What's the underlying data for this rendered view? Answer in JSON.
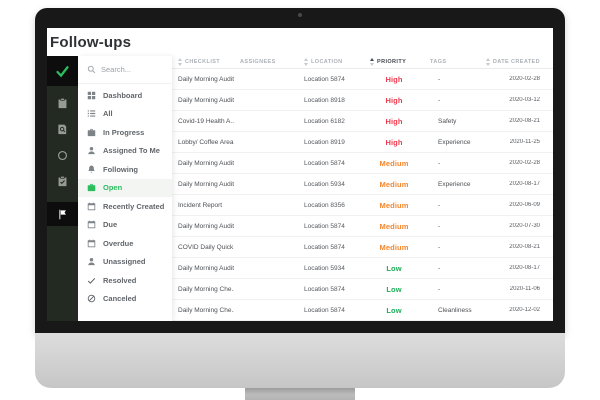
{
  "app": {
    "title": "Follow-ups"
  },
  "colors": {
    "accent_green": "#2bbd5e",
    "priority_high": "#ee3b4d",
    "priority_medium": "#f5872f",
    "priority_low": "#1fad59",
    "rail_background": "#232a22"
  },
  "rail": {
    "items": [
      {
        "icon": "check-logo-icon",
        "tile": true
      },
      {
        "icon": "clipboard-icon"
      },
      {
        "icon": "document-search-icon"
      },
      {
        "icon": "sync-icon"
      },
      {
        "icon": "clipboard-check-icon"
      },
      {
        "icon": "flag-icon",
        "active": true
      }
    ]
  },
  "sidebar": {
    "search_placeholder": "Search...",
    "items": [
      {
        "label": "Dashboard",
        "icon": "grid"
      },
      {
        "label": "All",
        "icon": "list"
      },
      {
        "label": "In Progress",
        "icon": "briefcase"
      },
      {
        "label": "Assigned To Me",
        "icon": "person"
      },
      {
        "label": "Following",
        "icon": "bell"
      },
      {
        "label": "Open",
        "icon": "briefcase",
        "active": true
      },
      {
        "label": "Recently Created",
        "icon": "calendar"
      },
      {
        "label": "Due",
        "icon": "calendar"
      },
      {
        "label": "Overdue",
        "icon": "calendar"
      },
      {
        "label": "Unassigned",
        "icon": "person"
      },
      {
        "label": "Resolved",
        "icon": "check"
      },
      {
        "label": "Canceled",
        "icon": "cancel"
      }
    ]
  },
  "table": {
    "columns": [
      {
        "label": "CHECKLIST",
        "sortable": true
      },
      {
        "label": "ASSIGNEES",
        "sortable": false
      },
      {
        "label": "LOCATION",
        "sortable": true
      },
      {
        "label": "PRIORITY",
        "sortable": true,
        "sorted": "asc"
      },
      {
        "label": "TAGS",
        "sortable": false
      },
      {
        "label": "DATE CREATED",
        "sortable": true,
        "align": "right"
      }
    ],
    "rows": [
      {
        "checklist": "Daily Morning Audit",
        "assignees": "",
        "location": "Location 5874",
        "priority": "High",
        "tags": "-",
        "date_created": "2020-02-28"
      },
      {
        "checklist": "Daily Morning Audit",
        "assignees": "",
        "location": "Location 8918",
        "priority": "High",
        "tags": "-",
        "date_created": "2020-03-12"
      },
      {
        "checklist": "Covid-19 Health A...",
        "assignees": "",
        "location": "Location 6182",
        "priority": "High",
        "tags": "Safety",
        "date_created": "2020-08-21"
      },
      {
        "checklist": "Lobby/ Coffee Area",
        "assignees": "",
        "location": "Location 8919",
        "priority": "High",
        "tags": "Experience",
        "date_created": "2020-11-25"
      },
      {
        "checklist": "Daily Morning Audit",
        "assignees": "",
        "location": "Location 5874",
        "priority": "Medium",
        "tags": "-",
        "date_created": "2020-02-28"
      },
      {
        "checklist": "Daily Morning Audit",
        "assignees": "",
        "location": "Location 5934",
        "priority": "Medium",
        "tags": "Experience",
        "date_created": "2020-08-17"
      },
      {
        "checklist": "Incident Report",
        "assignees": "",
        "location": "Location 8356",
        "priority": "Medium",
        "tags": "-",
        "date_created": "2020-06-09"
      },
      {
        "checklist": "Daily Morning Audit",
        "assignees": "",
        "location": "Location 5874",
        "priority": "Medium",
        "tags": "-",
        "date_created": "2020-07-30"
      },
      {
        "checklist": "COVID Daily Quick ...",
        "assignees": "",
        "location": "Location 5874",
        "priority": "Medium",
        "tags": "-",
        "date_created": "2020-08-21"
      },
      {
        "checklist": "Daily Morning Audit",
        "assignees": "",
        "location": "Location 5934",
        "priority": "Low",
        "tags": "-",
        "date_created": "2020-08-17"
      },
      {
        "checklist": "Daily Morning Che...",
        "assignees": "",
        "location": "Location 5874",
        "priority": "Low",
        "tags": "-",
        "date_created": "2020-11-06"
      },
      {
        "checklist": "Daily Morning Che...",
        "assignees": "",
        "location": "Location 5874",
        "priority": "Low",
        "tags": "Cleanliness",
        "date_created": "2020-12-02"
      }
    ]
  }
}
